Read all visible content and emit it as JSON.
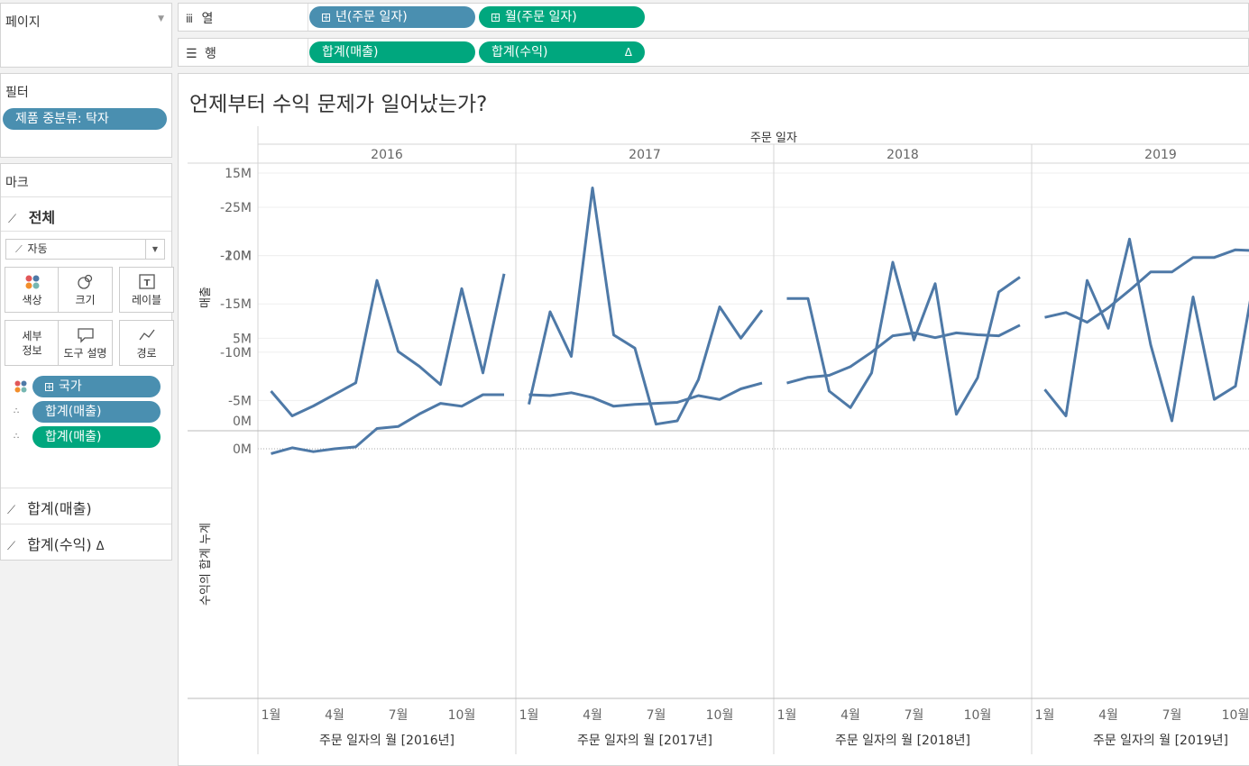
{
  "pages": {
    "title": "페이지"
  },
  "columns_shelf": {
    "label": "열",
    "pills": [
      "년(주문 일자)",
      "월(주문 일자)"
    ]
  },
  "rows_shelf": {
    "label": "행",
    "pills": [
      "합계(매출)",
      "합계(수익)"
    ],
    "delta": "Δ"
  },
  "filters": {
    "title": "필터",
    "pill": "제품 중분류: 탁자"
  },
  "marks": {
    "title": "마크",
    "all_label": "전체",
    "mark_type": "자동",
    "buttons": [
      "색상",
      "크기",
      "레이블",
      "세부\n정보",
      "도구 설명",
      "경로"
    ],
    "detail_pills": [
      "국가",
      "합계(매출)",
      "합계(매출)"
    ],
    "cards": [
      "합계(매출)",
      "합계(수익)"
    ],
    "delta": "Δ"
  },
  "view": {
    "title": "언제부터 수익 문제가 일어났는가?",
    "column_header": "주문 일자",
    "years": [
      "2016",
      "2017",
      "2018",
      "2019"
    ],
    "year_footers": [
      "주문 일자의 월 [2016년]",
      "주문 일자의 월 [2017년]",
      "주문 일자의 월 [2018년]",
      "주문 일자의 월 [2019년]"
    ],
    "month_ticks": [
      "1월",
      "4월",
      "7월",
      "10월"
    ],
    "sales_axis_label": "매출",
    "profit_axis_label": "수익의 합계 누계",
    "sales_ticks": [
      "15M",
      "10M",
      "5M",
      "0M"
    ],
    "profit_ticks": [
      "0M",
      "-5M",
      "-10M",
      "-15M",
      "-20M",
      "-25M"
    ]
  },
  "chart_data": {
    "type": "line",
    "line_color": "#4e79a7",
    "x_months": [
      1,
      2,
      3,
      4,
      5,
      6,
      7,
      8,
      9,
      10,
      11,
      12
    ],
    "sales_ylim": [
      0,
      15.5
    ],
    "profit_ylim": [
      -25.5,
      0.5
    ],
    "series": [
      {
        "name": "합계(매출)",
        "year": "2016",
        "values": [
          1.8,
          0.3,
          0.9,
          1.6,
          2.3,
          8.5,
          4.2,
          3.3,
          2.2,
          8.0,
          2.9,
          8.9
        ]
      },
      {
        "name": "합계(매출)",
        "year": "2017",
        "values": [
          1.0,
          6.6,
          3.9,
          14.1,
          5.2,
          4.4,
          -0.2,
          0.0,
          2.5,
          6.9,
          5.0,
          6.7
        ]
      },
      {
        "name": "합계(매출)",
        "year": "2018",
        "values": [
          7.4,
          7.4,
          1.8,
          0.8,
          2.9,
          9.6,
          4.9,
          8.3,
          0.4,
          2.6,
          7.8,
          8.7
        ]
      },
      {
        "name": "합계(매출)",
        "year": "2019",
        "values": [
          1.9,
          0.3,
          8.5,
          5.6,
          11.0,
          4.6,
          0.0,
          7.5,
          1.3,
          2.1,
          9.5,
          5.5
        ]
      },
      {
        "name": "합계(수익)",
        "year": "2016",
        "values": [
          0.5,
          -0.1,
          0.3,
          0.0,
          -0.2,
          -2.1,
          -2.3,
          -3.6,
          -4.7,
          -4.4,
          -5.6,
          -5.6
        ]
      },
      {
        "name": "합계(수익)",
        "year": "2017",
        "values": [
          -5.6,
          -5.5,
          -5.8,
          -5.3,
          -4.4,
          -4.6,
          -4.7,
          -4.8,
          -5.5,
          -5.1,
          -6.2,
          -6.8
        ]
      },
      {
        "name": "합계(수익)",
        "year": "2018",
        "values": [
          -6.8,
          -7.4,
          -7.6,
          -8.5,
          -10.0,
          -11.7,
          -12.0,
          -11.5,
          -12.0,
          -11.8,
          -11.7,
          -12.8
        ]
      },
      {
        "name": "합계(수익)",
        "year": "2019",
        "values": [
          -13.6,
          -14.1,
          -13.1,
          -14.6,
          -16.4,
          -18.3,
          -18.3,
          -19.8,
          -19.8,
          -20.6,
          -20.5,
          -21.0
        ]
      }
    ]
  }
}
